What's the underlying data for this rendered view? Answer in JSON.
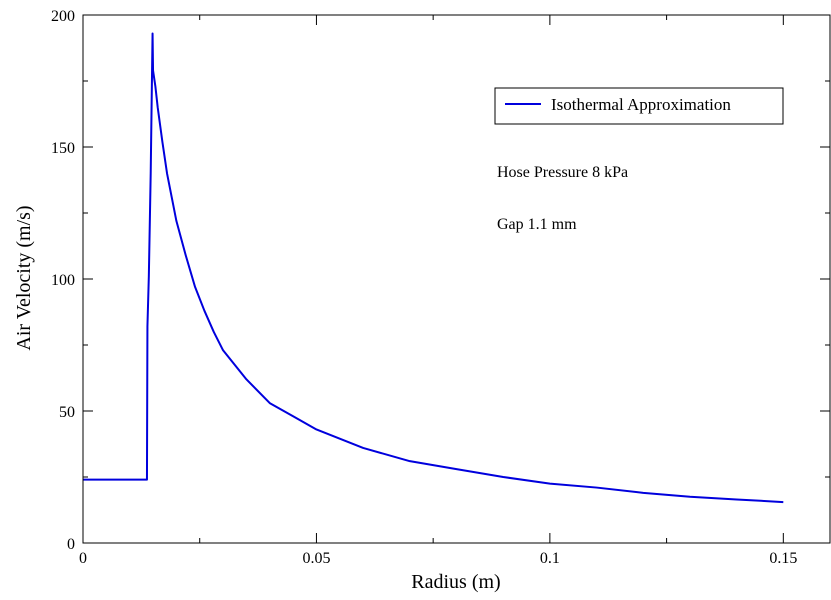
{
  "chart_data": {
    "type": "line",
    "xlabel": "Radius (m)",
    "ylabel": "Air Velocity (m/s)",
    "xlim": [
      0,
      0.16
    ],
    "ylim": [
      0,
      200
    ],
    "x_ticks": [
      {
        "value": 0,
        "label": "0"
      },
      {
        "value": 0.05,
        "label": "0.05"
      },
      {
        "value": 0.1,
        "label": "0.1"
      },
      {
        "value": 0.15,
        "label": "0.15"
      }
    ],
    "y_ticks": [
      {
        "value": 0,
        "label": "0"
      },
      {
        "value": 50,
        "label": "50"
      },
      {
        "value": 100,
        "label": "100"
      },
      {
        "value": 150,
        "label": "150"
      },
      {
        "value": 200,
        "label": "200"
      }
    ],
    "x_minor_step": 0.025,
    "y_minor_step": 25,
    "grid": false,
    "legend_position": "top-right",
    "annotations": [
      "Hose Pressure 8 kPa",
      "Gap 1.1 mm"
    ],
    "series": [
      {
        "name": "Isothermal Approximation",
        "color": "#0000dd",
        "x": [
          0,
          0.0137,
          0.0138,
          0.0141,
          0.0145,
          0.0149,
          0.015,
          0.0155,
          0.016,
          0.017,
          0.018,
          0.019,
          0.02,
          0.022,
          0.024,
          0.026,
          0.028,
          0.03,
          0.035,
          0.04,
          0.045,
          0.05,
          0.06,
          0.07,
          0.08,
          0.09,
          0.1,
          0.11,
          0.12,
          0.13,
          0.14,
          0.15
        ],
        "y": [
          24,
          24,
          82,
          101,
          140,
          193,
          179,
          173,
          165,
          152,
          140,
          131,
          122,
          109,
          97,
          88,
          80,
          73,
          62,
          53,
          48,
          43,
          36,
          31,
          28,
          25,
          22.5,
          21,
          19,
          17.5,
          16.5,
          15.5
        ]
      }
    ]
  }
}
